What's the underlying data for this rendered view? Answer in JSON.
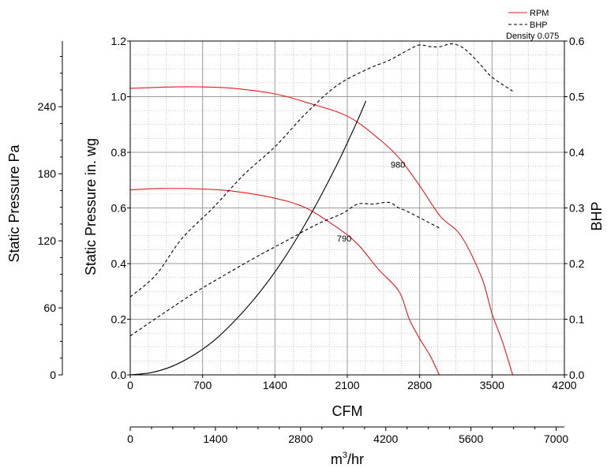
{
  "chart_data": {
    "type": "line",
    "x_axis": {
      "label": "CFM",
      "range": [
        0,
        4200
      ],
      "ticks": [
        "0",
        "700",
        "1400",
        "2100",
        "2800",
        "3500",
        "4200"
      ]
    },
    "x2_axis": {
      "label_base": "m",
      "label_sup": "3",
      "label_rest": "/hr",
      "range": [
        0,
        7135
      ],
      "ticks": [
        "0",
        "1400",
        "2800",
        "4200",
        "5600",
        "7000"
      ],
      "tick_values": [
        0,
        1400,
        2800,
        4200,
        5600,
        7000
      ]
    },
    "y_axis": {
      "label": "Static Pressure in. wg",
      "range": [
        0,
        1.2
      ],
      "ticks": [
        "0.0",
        "0.2",
        "0.4",
        "0.6",
        "0.8",
        "1.0",
        "1.2"
      ]
    },
    "y_pa_axis": {
      "label": "Static Pressure Pa",
      "range": [
        0,
        298.8
      ],
      "ticks": [
        "0",
        "60",
        "120",
        "180",
        "240"
      ],
      "tick_values": [
        0,
        60,
        120,
        180,
        240
      ]
    },
    "y2_axis": {
      "label": "BHP",
      "range": [
        0,
        0.6
      ],
      "ticks": [
        "0.0",
        "0.1",
        "0.2",
        "0.3",
        "0.4",
        "0.5",
        "0.6"
      ]
    },
    "grid": true,
    "legend": {
      "position": "top-right",
      "items": [
        {
          "label": "RPM",
          "style": "solid",
          "color": "#e8191c"
        },
        {
          "label": "BHP",
          "style": "dashed",
          "color": "#000000"
        }
      ],
      "note": "Density 0.075"
    },
    "series": [
      {
        "name": "980",
        "kind": "rpm",
        "axis": "left",
        "x": [
          0,
          400,
          700,
          1000,
          1400,
          1700,
          2100,
          2400,
          2600,
          2800,
          3000,
          3200,
          3400,
          3500,
          3600,
          3700
        ],
        "y": [
          1.03,
          1.035,
          1.035,
          1.03,
          1.01,
          0.98,
          0.93,
          0.85,
          0.78,
          0.68,
          0.57,
          0.5,
          0.35,
          0.22,
          0.12,
          0.0
        ]
      },
      {
        "name": "790",
        "kind": "rpm",
        "axis": "left",
        "x": [
          0,
          300,
          700,
          1000,
          1400,
          1700,
          2000,
          2200,
          2400,
          2600,
          2700,
          2800,
          2900,
          2990
        ],
        "y": [
          0.665,
          0.67,
          0.668,
          0.66,
          0.635,
          0.6,
          0.53,
          0.47,
          0.38,
          0.3,
          0.2,
          0.13,
          0.07,
          0.0
        ]
      },
      {
        "name": "980",
        "kind": "bhp",
        "axis": "right",
        "x": [
          0,
          250,
          500,
          800,
          1100,
          1400,
          1700,
          2000,
          2300,
          2500,
          2700,
          2800,
          2900,
          3000,
          3100,
          3200,
          3300,
          3400,
          3500,
          3700
        ],
        "y": [
          0.14,
          0.18,
          0.245,
          0.3,
          0.36,
          0.41,
          0.47,
          0.52,
          0.55,
          0.565,
          0.585,
          0.593,
          0.59,
          0.59,
          0.595,
          0.59,
          0.575,
          0.555,
          0.535,
          0.51
        ]
      },
      {
        "name": "790",
        "kind": "bhp",
        "axis": "right",
        "x": [
          0,
          300,
          600,
          900,
          1200,
          1500,
          1800,
          2050,
          2200,
          2350,
          2500,
          2600,
          2700,
          3000
        ],
        "y": [
          0.07,
          0.108,
          0.145,
          0.178,
          0.21,
          0.24,
          0.27,
          0.29,
          0.307,
          0.307,
          0.31,
          0.3,
          0.292,
          0.263
        ]
      },
      {
        "name": "",
        "kind": "system",
        "axis": "left",
        "x": [
          0,
          200,
          400,
          600,
          800,
          1000,
          1200,
          1400,
          1600,
          1800,
          2000,
          2100,
          2200,
          2280
        ],
        "y": [
          0.0,
          0.008,
          0.03,
          0.068,
          0.12,
          0.19,
          0.273,
          0.37,
          0.484,
          0.613,
          0.756,
          0.834,
          0.915,
          0.985
        ]
      }
    ],
    "curve_labels": [
      {
        "text": "980",
        "x": 2520,
        "y": 0.745
      },
      {
        "text": "790",
        "x": 2000,
        "y": 0.48
      }
    ],
    "colors": {
      "rpm": "#e8191c",
      "bhp": "#000000",
      "system": "#000000",
      "grid": "#9a9a9a"
    }
  }
}
